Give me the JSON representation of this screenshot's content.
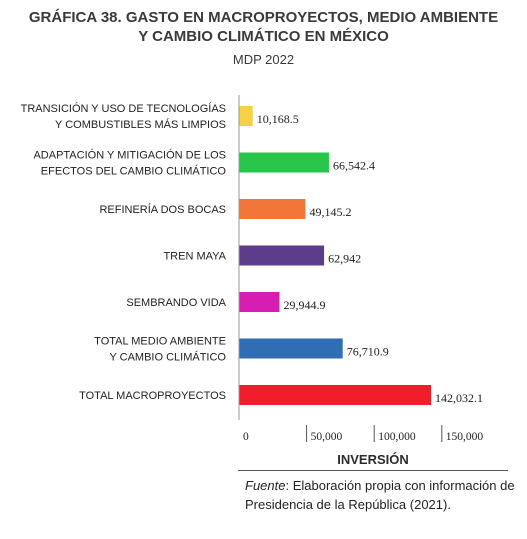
{
  "title_line1": "GRÁFICA 38. GASTO EN MACROPROYECTOS, MEDIO AMBIENTE",
  "title_line2": "Y CAMBIO CLIMÁTICO EN MÉXICO",
  "subtitle": "MDP 2022",
  "source": {
    "prefix": "Fuente",
    "text": ": Elaboración propia con información de Presidencia de la República (2021)."
  },
  "chart_data": {
    "type": "bar",
    "orientation": "horizontal",
    "title": "GRÁFICA 38. GASTO EN MACROPROYECTOS, MEDIO AMBIENTE Y CAMBIO CLIMÁTICO EN MÉXICO",
    "subtitle": "MDP 2022",
    "xlabel": "INVERSIÓN",
    "ylabel": "",
    "xlim": [
      0,
      150000
    ],
    "ticks": [
      {
        "value": 0,
        "label": "0"
      },
      {
        "value": 50000,
        "label": "50,000"
      },
      {
        "value": 100000,
        "label": "100,000"
      },
      {
        "value": 150000,
        "label": "150,000"
      }
    ],
    "grid": false,
    "categories": [
      [
        "TRANSICIÓN Y USO DE TECNOLOGÍAS",
        "Y COMBUSTIBLES MÁS LIMPIOS"
      ],
      [
        "ADAPTACIÓN Y MITIGACIÓN DE LOS",
        "EFECTOS DEL CAMBIO CLIMÁTICO"
      ],
      [
        "REFINERÍA DOS BOCAS"
      ],
      [
        "TREN MAYA"
      ],
      [
        "SEMBRANDO VIDA"
      ],
      [
        "TOTAL MEDIO AMBIENTE",
        "Y CAMBIO CLIMÁTICO"
      ],
      [
        "TOTAL MACROPROYECTOS"
      ]
    ],
    "values": [
      10168.5,
      66542.4,
      49145.2,
      62942,
      29944.9,
      76710.9,
      142032.1
    ],
    "value_labels": [
      "10,168.5",
      "66,542.4",
      "49,145.2",
      "62,942",
      "29,944.9",
      "76,710.9",
      "142,032.1"
    ],
    "colors": [
      "#f7d046",
      "#28c64a",
      "#f2763a",
      "#5b3d8c",
      "#d61fb2",
      "#2f6db5",
      "#f21c2a"
    ]
  }
}
